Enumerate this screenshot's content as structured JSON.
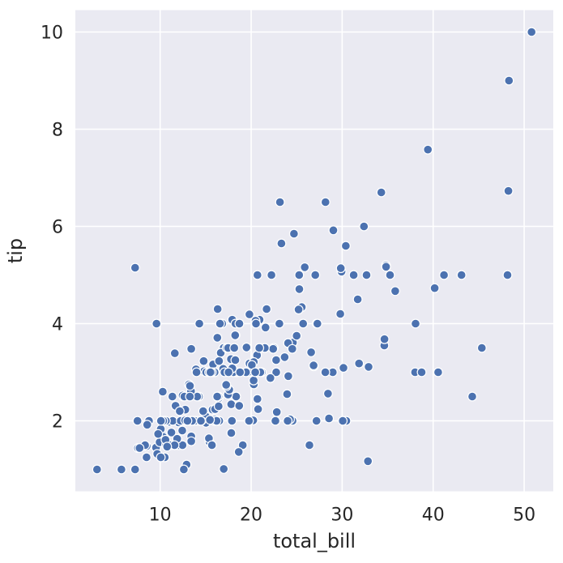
{
  "figure": {
    "background_color": "#ffffff",
    "text_color": "#262626"
  },
  "chart_data": {
    "type": "scatter",
    "title": "",
    "xlabel": "total_bill",
    "ylabel": "tip",
    "x_ticks": [
      10,
      20,
      30,
      40,
      50
    ],
    "y_ticks": [
      2,
      4,
      6,
      8,
      10
    ],
    "xlim": [
      0.683,
      53.197
    ],
    "ylim": [
      0.55,
      10.45
    ],
    "grid": true,
    "legend": false,
    "plot_background_color": "#eaeaf2",
    "grid_color": "#ffffff",
    "marker_color": "#4c72b0",
    "marker_edge_color": "#ffffff",
    "points": [
      [
        16.99,
        1.01
      ],
      [
        10.34,
        1.66
      ],
      [
        21.01,
        3.5
      ],
      [
        23.68,
        3.31
      ],
      [
        24.59,
        3.61
      ],
      [
        25.29,
        4.71
      ],
      [
        8.77,
        2.0
      ],
      [
        26.88,
        3.12
      ],
      [
        15.04,
        1.96
      ],
      [
        14.78,
        3.23
      ],
      [
        10.27,
        1.71
      ],
      [
        35.26,
        5.0
      ],
      [
        15.42,
        1.57
      ],
      [
        18.43,
        3.0
      ],
      [
        14.83,
        3.02
      ],
      [
        21.58,
        3.92
      ],
      [
        10.33,
        1.67
      ],
      [
        16.29,
        3.71
      ],
      [
        16.97,
        3.5
      ],
      [
        20.65,
        3.35
      ],
      [
        17.92,
        4.08
      ],
      [
        20.29,
        2.75
      ],
      [
        15.77,
        2.23
      ],
      [
        39.42,
        7.58
      ],
      [
        19.82,
        3.18
      ],
      [
        17.81,
        2.34
      ],
      [
        13.37,
        2.0
      ],
      [
        12.69,
        2.0
      ],
      [
        21.7,
        4.3
      ],
      [
        19.65,
        3.0
      ],
      [
        9.55,
        1.45
      ],
      [
        18.35,
        2.5
      ],
      [
        15.06,
        3.0
      ],
      [
        20.69,
        2.45
      ],
      [
        17.78,
        3.27
      ],
      [
        24.06,
        3.6
      ],
      [
        16.31,
        2.0
      ],
      [
        16.93,
        3.07
      ],
      [
        18.69,
        2.31
      ],
      [
        31.27,
        5.0
      ],
      [
        16.04,
        2.24
      ],
      [
        17.46,
        2.54
      ],
      [
        13.94,
        3.06
      ],
      [
        9.68,
        1.32
      ],
      [
        30.4,
        5.6
      ],
      [
        18.29,
        3.0
      ],
      [
        22.23,
        5.0
      ],
      [
        32.4,
        6.0
      ],
      [
        28.55,
        2.05
      ],
      [
        18.04,
        3.0
      ],
      [
        12.54,
        2.5
      ],
      [
        10.29,
        2.6
      ],
      [
        34.81,
        5.2
      ],
      [
        9.94,
        1.56
      ],
      [
        25.56,
        4.34
      ],
      [
        19.49,
        3.51
      ],
      [
        38.01,
        3.0
      ],
      [
        26.41,
        1.5
      ],
      [
        11.24,
        1.76
      ],
      [
        48.27,
        6.73
      ],
      [
        20.29,
        3.21
      ],
      [
        13.81,
        2.0
      ],
      [
        11.02,
        1.98
      ],
      [
        18.29,
        3.76
      ],
      [
        17.59,
        2.64
      ],
      [
        20.08,
        3.15
      ],
      [
        16.45,
        2.47
      ],
      [
        3.07,
        1.0
      ],
      [
        20.23,
        2.01
      ],
      [
        15.01,
        2.09
      ],
      [
        12.02,
        1.97
      ],
      [
        17.07,
        3.0
      ],
      [
        26.86,
        3.14
      ],
      [
        25.28,
        5.0
      ],
      [
        14.73,
        2.2
      ],
      [
        10.51,
        1.25
      ],
      [
        17.92,
        3.08
      ],
      [
        27.2,
        4.0
      ],
      [
        22.76,
        3.0
      ],
      [
        17.29,
        2.71
      ],
      [
        19.44,
        3.0
      ],
      [
        16.66,
        3.4
      ],
      [
        10.07,
        1.83
      ],
      [
        32.68,
        5.0
      ],
      [
        15.98,
        2.03
      ],
      [
        34.83,
        5.17
      ],
      [
        13.03,
        2.0
      ],
      [
        18.28,
        4.0
      ],
      [
        24.71,
        5.85
      ],
      [
        21.16,
        3.0
      ],
      [
        28.97,
        3.0
      ],
      [
        22.49,
        3.5
      ],
      [
        5.75,
        1.0
      ],
      [
        16.32,
        4.3
      ],
      [
        22.75,
        3.25
      ],
      [
        40.17,
        4.73
      ],
      [
        27.28,
        4.0
      ],
      [
        12.03,
        1.5
      ],
      [
        21.01,
        3.0
      ],
      [
        12.46,
        1.5
      ],
      [
        11.35,
        2.5
      ],
      [
        15.38,
        3.0
      ],
      [
        44.3,
        2.5
      ],
      [
        22.42,
        3.48
      ],
      [
        20.92,
        4.08
      ],
      [
        15.36,
        1.64
      ],
      [
        20.49,
        4.06
      ],
      [
        25.21,
        4.29
      ],
      [
        18.24,
        3.76
      ],
      [
        14.31,
        4.0
      ],
      [
        14.0,
        3.0
      ],
      [
        7.25,
        1.0
      ],
      [
        38.07,
        4.0
      ],
      [
        23.95,
        2.55
      ],
      [
        25.71,
        4.0
      ],
      [
        17.31,
        3.5
      ],
      [
        29.93,
        5.07
      ],
      [
        10.65,
        1.5
      ],
      [
        12.43,
        1.8
      ],
      [
        24.08,
        2.92
      ],
      [
        11.69,
        2.31
      ],
      [
        13.42,
        1.68
      ],
      [
        14.26,
        2.5
      ],
      [
        15.95,
        2.0
      ],
      [
        12.48,
        2.52
      ],
      [
        29.8,
        4.2
      ],
      [
        8.52,
        1.48
      ],
      [
        14.52,
        2.0
      ],
      [
        11.38,
        2.0
      ],
      [
        22.82,
        2.18
      ],
      [
        19.08,
        1.5
      ],
      [
        20.27,
        2.83
      ],
      [
        11.17,
        1.5
      ],
      [
        12.26,
        2.0
      ],
      [
        18.26,
        3.25
      ],
      [
        8.51,
        1.25
      ],
      [
        10.33,
        2.0
      ],
      [
        14.15,
        2.0
      ],
      [
        16.0,
        2.0
      ],
      [
        13.16,
        2.75
      ],
      [
        17.47,
        3.5
      ],
      [
        34.3,
        6.7
      ],
      [
        41.19,
        5.0
      ],
      [
        27.05,
        5.0
      ],
      [
        16.43,
        2.3
      ],
      [
        8.35,
        1.5
      ],
      [
        18.64,
        1.36
      ],
      [
        11.87,
        1.63
      ],
      [
        9.78,
        1.73
      ],
      [
        7.51,
        2.0
      ],
      [
        14.07,
        2.5
      ],
      [
        13.13,
        2.0
      ],
      [
        17.26,
        2.74
      ],
      [
        24.55,
        2.0
      ],
      [
        19.77,
        2.0
      ],
      [
        29.85,
        5.14
      ],
      [
        48.17,
        5.0
      ],
      [
        25.0,
        3.75
      ],
      [
        13.39,
        2.61
      ],
      [
        16.49,
        2.0
      ],
      [
        21.5,
        3.5
      ],
      [
        12.66,
        2.5
      ],
      [
        16.21,
        2.0
      ],
      [
        13.81,
        2.0
      ],
      [
        17.51,
        3.0
      ],
      [
        24.52,
        3.48
      ],
      [
        20.76,
        2.24
      ],
      [
        31.71,
        4.5
      ],
      [
        10.59,
        1.61
      ],
      [
        10.63,
        2.0
      ],
      [
        50.81,
        10.0
      ],
      [
        15.81,
        3.16
      ],
      [
        7.25,
        5.15
      ],
      [
        31.85,
        3.18
      ],
      [
        16.82,
        4.0
      ],
      [
        32.9,
        3.11
      ],
      [
        17.89,
        2.0
      ],
      [
        14.48,
        2.0
      ],
      [
        9.6,
        4.0
      ],
      [
        34.63,
        3.55
      ],
      [
        34.65,
        3.68
      ],
      [
        23.33,
        5.65
      ],
      [
        45.35,
        3.5
      ],
      [
        23.17,
        6.5
      ],
      [
        40.55,
        3.0
      ],
      [
        20.69,
        5.0
      ],
      [
        20.9,
        3.5
      ],
      [
        30.46,
        2.0
      ],
      [
        18.15,
        3.5
      ],
      [
        23.1,
        4.0
      ],
      [
        15.69,
        1.5
      ],
      [
        19.81,
        4.19
      ],
      [
        28.44,
        2.56
      ],
      [
        15.48,
        2.02
      ],
      [
        16.58,
        4.0
      ],
      [
        7.56,
        1.44
      ],
      [
        10.34,
        2.0
      ],
      [
        43.11,
        5.0
      ],
      [
        13.0,
        2.0
      ],
      [
        13.51,
        2.0
      ],
      [
        18.71,
        4.0
      ],
      [
        12.74,
        2.01
      ],
      [
        13.0,
        2.0
      ],
      [
        16.4,
        2.5
      ],
      [
        20.53,
        4.0
      ],
      [
        16.47,
        3.23
      ],
      [
        26.59,
        3.41
      ],
      [
        38.73,
        3.0
      ],
      [
        24.27,
        2.03
      ],
      [
        12.76,
        2.23
      ],
      [
        30.06,
        2.0
      ],
      [
        25.89,
        5.16
      ],
      [
        48.33,
        9.0
      ],
      [
        13.27,
        2.5
      ],
      [
        28.17,
        6.5
      ],
      [
        12.9,
        1.1
      ],
      [
        28.15,
        3.0
      ],
      [
        11.59,
        1.5
      ],
      [
        7.74,
        1.44
      ],
      [
        30.14,
        3.09
      ],
      [
        12.16,
        2.2
      ],
      [
        13.42,
        3.48
      ],
      [
        8.58,
        1.92
      ],
      [
        15.98,
        3.0
      ],
      [
        13.42,
        1.58
      ],
      [
        16.27,
        2.5
      ],
      [
        10.09,
        2.0
      ],
      [
        20.45,
        3.0
      ],
      [
        13.28,
        2.72
      ],
      [
        22.12,
        2.88
      ],
      [
        24.01,
        2.0
      ],
      [
        15.69,
        3.0
      ],
      [
        11.61,
        3.39
      ],
      [
        10.77,
        1.47
      ],
      [
        15.53,
        3.0
      ],
      [
        10.07,
        1.25
      ],
      [
        12.6,
        1.0
      ],
      [
        32.83,
        1.17
      ],
      [
        35.83,
        4.67
      ],
      [
        29.03,
        5.92
      ],
      [
        27.18,
        2.0
      ],
      [
        22.67,
        2.0
      ],
      [
        17.82,
        1.75
      ],
      [
        18.78,
        3.0
      ]
    ]
  }
}
